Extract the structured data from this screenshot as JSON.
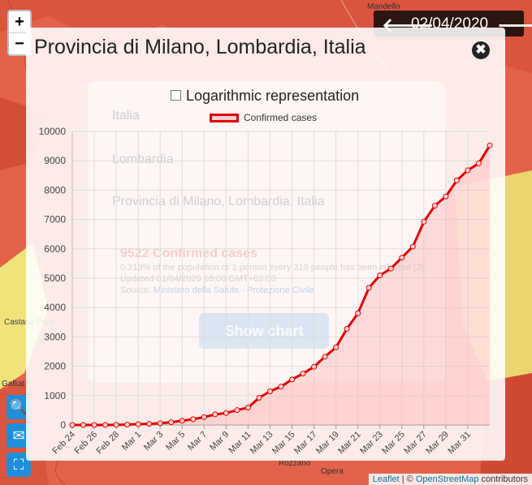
{
  "map": {
    "zoom_in": "+",
    "zoom_out": "−",
    "labels": [
      "Mandello",
      "Galliat",
      "Rozzano",
      "Opera",
      "Castano Primo"
    ],
    "attribution": {
      "leaflet": "Leaflet",
      "sep": " | © ",
      "osm": "OpenStreetMap",
      "suffix": " contributors"
    }
  },
  "datebar": {
    "prev": "🡐",
    "date": "02/04/2020",
    "next": "🡒"
  },
  "left_tools": {
    "search": "🔍",
    "mail": "✉",
    "fullscreen": "⛶"
  },
  "popup": {
    "title": "Provincia di Milano, Lombardia, Italia",
    "close_icon": "✖",
    "log_label": "Logarithmic representation",
    "legend_label": "Confirmed cases",
    "background_panel": {
      "rows": [
        "Italia",
        "Lombardia",
        "Provincia di Milano, Lombardia, Italia"
      ],
      "confirmed": "9522 Confirmed cases",
      "line1": "0.313% of the population or 1 person every 319 people has been infected (3)",
      "line2": "Updated 01/04/2020 18:00 GMT+02:00",
      "source_label": "Source: ",
      "source": "Ministero della Salute - Protezione Civile",
      "button": "Show chart"
    }
  },
  "chart_data": {
    "type": "line",
    "series": [
      {
        "name": "Confirmed cases",
        "color": "#e00000",
        "values": [
          0,
          0,
          0,
          0,
          5,
          13,
          29,
          37,
          58,
          93,
          145,
          197,
          267,
          361,
          406,
          506,
          592,
          925,
          1146,
          1307,
          1551,
          1750,
          1983,
          2326,
          2644,
          3278,
          3804,
          4672,
          5096,
          5326,
          5701,
          6074,
          6922,
          7469,
          7783,
          8329,
          8676,
          8911,
          9522
        ]
      }
    ],
    "x": [
      "Feb 24",
      "Feb 25",
      "Feb 26",
      "Feb 27",
      "Feb 28",
      "Feb 29",
      "Mar 1",
      "Mar 2",
      "Mar 3",
      "Mar 4",
      "Mar 5",
      "Mar 6",
      "Mar 7",
      "Mar 8",
      "Mar 9",
      "Mar 10",
      "Mar 11",
      "Mar 12",
      "Mar 13",
      "Mar 14",
      "Mar 15",
      "Mar 16",
      "Mar 17",
      "Mar 18",
      "Mar 19",
      "Mar 20",
      "Mar 21",
      "Mar 22",
      "Mar 23",
      "Mar 24",
      "Mar 25",
      "Mar 26",
      "Mar 27",
      "Mar 28",
      "Mar 29",
      "Mar 30",
      "Mar 31",
      "Apr 1",
      "Apr 2"
    ],
    "x_tick_labels": [
      "Feb 24",
      "Feb 26",
      "Feb 28",
      "Mar 1",
      "Mar 3",
      "Mar 5",
      "Mar 7",
      "Mar 9",
      "Mar 11",
      "Mar 13",
      "Mar 15",
      "Mar 17",
      "Mar 19",
      "Mar 21",
      "Mar 23",
      "Mar 25",
      "Mar 27",
      "Mar 29",
      "Mar 31"
    ],
    "y_ticks": [
      0,
      1000,
      2000,
      3000,
      4000,
      5000,
      6000,
      7000,
      8000,
      9000,
      10000
    ],
    "ylim": [
      0,
      10000
    ],
    "grid": true,
    "legend": "top-center"
  }
}
